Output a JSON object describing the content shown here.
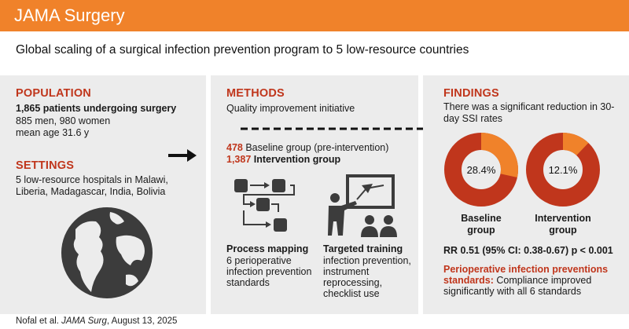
{
  "header": {
    "title": "JAMA Surgery"
  },
  "subtitle": "Global scaling of a surgical infection prevention program to 5 low-resource countries",
  "population": {
    "title": "POPULATION",
    "headline": "1,865 patients undergoing surgery",
    "line1": "885 men, 980 women",
    "line2": "mean age 31.6 y"
  },
  "settings": {
    "title": "SETTINGS",
    "line1": "5 low-resource hospitals in Malawi,",
    "line2": "Liberia, Madagascar, India, Bolivia"
  },
  "methods": {
    "title": "METHODS",
    "subtitle": "Quality improvement initiative",
    "baseline_n": "478",
    "baseline_label": "Baseline group (pre-intervention)",
    "intervention_n": "1,387",
    "intervention_label": "Intervention group",
    "process": {
      "title": "Process mapping",
      "line1": "6 perioperative",
      "line2": "infection prevention",
      "line3": "standards"
    },
    "training": {
      "title": "Targeted training",
      "line1": "infection prevention,",
      "line2": "instrument",
      "line3": "reprocessing,",
      "line4": "checklist use"
    }
  },
  "findings": {
    "title": "FINDINGS",
    "line1": "There was a significant reduction in 30-",
    "line2": "day SSI rates",
    "baseline": {
      "pct_label": "28.4%",
      "value": 0.284,
      "label1": "Baseline",
      "label2": "group"
    },
    "intervention": {
      "pct_label": "12.1%",
      "value": 0.121,
      "label1": "Intervention",
      "label2": "group"
    },
    "rr": "RR 0.51 (95% CI: 0.38-0.67) p < 0.001",
    "standards_title1": "Perioperative infection preventions",
    "standards_title2": "standards:",
    "standards_text1": " Compliance improved",
    "standards_text2": "significantly with all 6 standards"
  },
  "footer": {
    "authors": "Nofal et al. ",
    "journal": "JAMA Surg",
    "date": ", August 13, 2025"
  },
  "colors": {
    "orange": "#f0822a",
    "red": "#c0361c",
    "panel": "#ececec",
    "icon": "#3c3c3c"
  }
}
